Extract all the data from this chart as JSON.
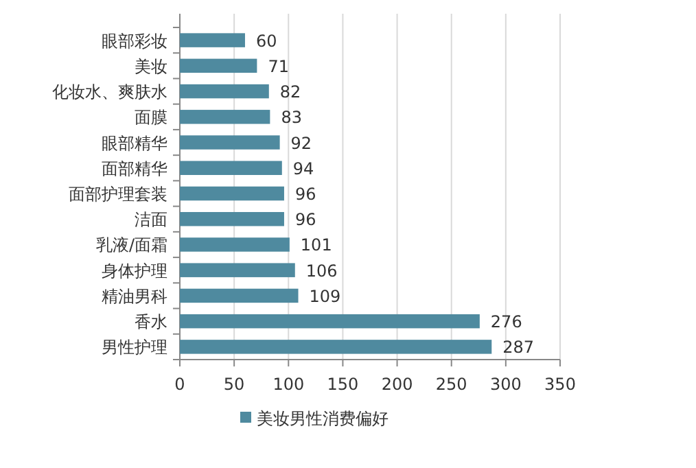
{
  "chart_data": {
    "type": "bar",
    "orientation": "horizontal",
    "categories": [
      "眼部彩妆",
      "美妆",
      "化妆水、爽肤水",
      "面膜",
      "眼部精华",
      "面部精华",
      "面部护理套装",
      "洁面",
      "乳液/面霜",
      "身体护理",
      "精油男科",
      "香水",
      "男性护理"
    ],
    "series": [
      {
        "name": "美妆男性消费偏好",
        "color": "#4f8a9f",
        "values": [
          60,
          71,
          82,
          83,
          92,
          94,
          96,
          96,
          101,
          106,
          109,
          276,
          287
        ]
      }
    ],
    "xlim": [
      0,
      350
    ],
    "xticks": [
      0,
      50,
      100,
      150,
      200,
      250,
      300,
      350
    ],
    "grid": "x",
    "legend": "bottom",
    "data_labels": true
  }
}
